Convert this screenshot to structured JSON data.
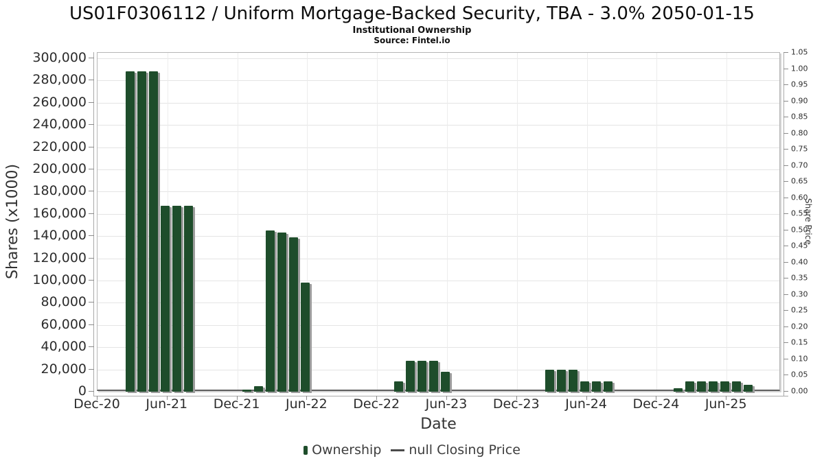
{
  "chart_data": {
    "type": "bar",
    "title": "US01F0306112 / Uniform Mortgage-Backed Security, TBA - 3.0% 2050-01-15",
    "subtitle": "Institutional Ownership",
    "source": "Source: Fintel.io",
    "xlabel": "Date",
    "ylabel_left": "Shares (x1000)",
    "ylabel_right": "Share Price",
    "ylim_left": [
      0,
      300000
    ],
    "ytick_step_left": 20000,
    "ylim_right": [
      0,
      1.05
    ],
    "ytick_step_right": 0.05,
    "grid": true,
    "legend_position": "bottom-center",
    "bar_color": "#1e4d2b",
    "bar_shadow_color": "#9c9c9c",
    "xticks": [
      "Dec-20",
      "Jun-21",
      "Dec-21",
      "Jun-22",
      "Dec-22",
      "Jun-23",
      "Dec-23",
      "Jun-24",
      "Dec-24",
      "Jun-25"
    ],
    "legend": [
      {
        "label": "Ownership",
        "marker": "square",
        "color": "#1e4d2b"
      },
      {
        "label": "null Closing Price",
        "marker": "line",
        "color": "#4a4a4a"
      }
    ],
    "series": [
      {
        "name": "Ownership",
        "axis": "left",
        "unit": "shares x1000"
      },
      {
        "name": "null Closing Price",
        "axis": "right",
        "values": []
      }
    ],
    "points": [
      {
        "month": "2021-03",
        "shares_x1000": 288000
      },
      {
        "month": "2021-04",
        "shares_x1000": 288000
      },
      {
        "month": "2021-05",
        "shares_x1000": 288000
      },
      {
        "month": "2021-06",
        "shares_x1000": 167000
      },
      {
        "month": "2021-07",
        "shares_x1000": 167000
      },
      {
        "month": "2021-08",
        "shares_x1000": 167000
      },
      {
        "month": "2022-01",
        "shares_x1000": 2000
      },
      {
        "month": "2022-02",
        "shares_x1000": 5000
      },
      {
        "month": "2022-03",
        "shares_x1000": 145000
      },
      {
        "month": "2022-04",
        "shares_x1000": 143500
      },
      {
        "month": "2022-05",
        "shares_x1000": 139000
      },
      {
        "month": "2022-06",
        "shares_x1000": 98000
      },
      {
        "month": "2023-02",
        "shares_x1000": 9000
      },
      {
        "month": "2023-03",
        "shares_x1000": 28000
      },
      {
        "month": "2023-04",
        "shares_x1000": 28000
      },
      {
        "month": "2023-05",
        "shares_x1000": 27500
      },
      {
        "month": "2023-06",
        "shares_x1000": 18000
      },
      {
        "month": "2024-03",
        "shares_x1000": 19500
      },
      {
        "month": "2024-04",
        "shares_x1000": 19500
      },
      {
        "month": "2024-05",
        "shares_x1000": 19500
      },
      {
        "month": "2024-06",
        "shares_x1000": 9000
      },
      {
        "month": "2024-07",
        "shares_x1000": 9000
      },
      {
        "month": "2024-08",
        "shares_x1000": 9000
      },
      {
        "month": "2025-02",
        "shares_x1000": 3000
      },
      {
        "month": "2025-03",
        "shares_x1000": 9500
      },
      {
        "month": "2025-04",
        "shares_x1000": 9500
      },
      {
        "month": "2025-05",
        "shares_x1000": 9500
      },
      {
        "month": "2025-06",
        "shares_x1000": 9500
      },
      {
        "month": "2025-07",
        "shares_x1000": 9500
      },
      {
        "month": "2025-08",
        "shares_x1000": 6000
      }
    ]
  }
}
